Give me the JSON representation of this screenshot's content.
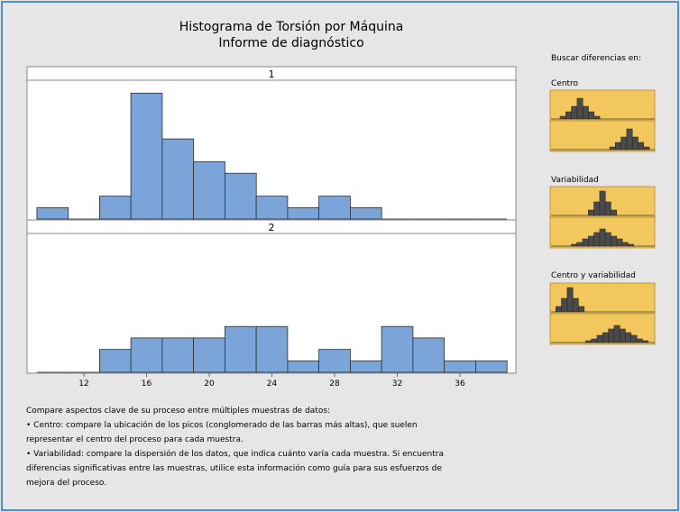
{
  "report": {
    "title": "Histograma de Torsión por Máquina",
    "subtitle": "Informe de diagnóstico"
  },
  "chart_data": {
    "type": "bar",
    "panels": [
      {
        "label": "1",
        "bin_starts": [
          9,
          11,
          13,
          15,
          17,
          19,
          21,
          23,
          25,
          27,
          29,
          31,
          33,
          35,
          37
        ],
        "counts": [
          1,
          0,
          2,
          11,
          7,
          5,
          4,
          2,
          1,
          2,
          1,
          0,
          0,
          0,
          0
        ]
      },
      {
        "label": "2",
        "bin_starts": [
          9,
          11,
          13,
          15,
          17,
          19,
          21,
          23,
          25,
          27,
          29,
          31,
          33,
          35,
          37
        ],
        "counts": [
          0,
          0,
          2,
          3,
          3,
          3,
          4,
          4,
          1,
          2,
          1,
          4,
          3,
          1,
          1
        ]
      }
    ],
    "bin_width": 2,
    "xlim": [
      8,
      39
    ],
    "x_ticks": [
      12,
      16,
      20,
      24,
      28,
      32,
      36
    ],
    "ylim": [
      0,
      12
    ],
    "bar_color": "#7ba5d8"
  },
  "sidebar": {
    "heading": "Buscar diferencias en:",
    "center_label": "Centro",
    "variability_label": "Variabilidad",
    "both_label": "Centro y variabilidad",
    "icon_bg": "#f2c85e"
  },
  "notes": {
    "intro": "Compare aspectos clave de su proceso entre múltiples muestras de datos:",
    "bullet_center": "•  Centro: compare la ubicación de los picos (conglomerado de las barras más altas), que suelen representar el centro del proceso para cada muestra.",
    "bullet_variability": "•  Variabilidad: compare la dispersión de los datos, que indica cuánto varía cada muestra. Si encuentra diferencias significativas entre las muestras, utilice esta información como guía para sus esfuerzos de mejora del proceso."
  }
}
